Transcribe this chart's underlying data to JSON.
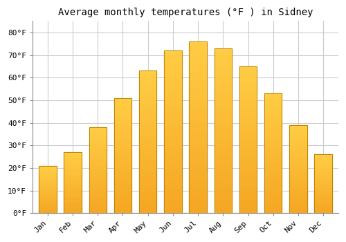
{
  "title": "Average monthly temperatures (°F ) in Sidney",
  "months": [
    "Jan",
    "Feb",
    "Mar",
    "Apr",
    "May",
    "Jun",
    "Jul",
    "Aug",
    "Sep",
    "Oct",
    "Nov",
    "Dec"
  ],
  "values": [
    21,
    27,
    38,
    51,
    63,
    72,
    76,
    73,
    65,
    53,
    39,
    26
  ],
  "bar_color_top": "#FFCC44",
  "bar_color_bottom": "#F5A623",
  "bar_edge_color": "#B8860B",
  "ylim": [
    0,
    85
  ],
  "yticks": [
    0,
    10,
    20,
    30,
    40,
    50,
    60,
    70,
    80
  ],
  "ytick_labels": [
    "0°F",
    "10°F",
    "20°F",
    "30°F",
    "40°F",
    "50°F",
    "60°F",
    "70°F",
    "80°F"
  ],
  "background_color": "#FFFFFF",
  "grid_color": "#CCCCCC",
  "title_fontsize": 10,
  "tick_fontsize": 8,
  "font_family": "monospace",
  "bar_width": 0.7,
  "n_gradient_steps": 50
}
